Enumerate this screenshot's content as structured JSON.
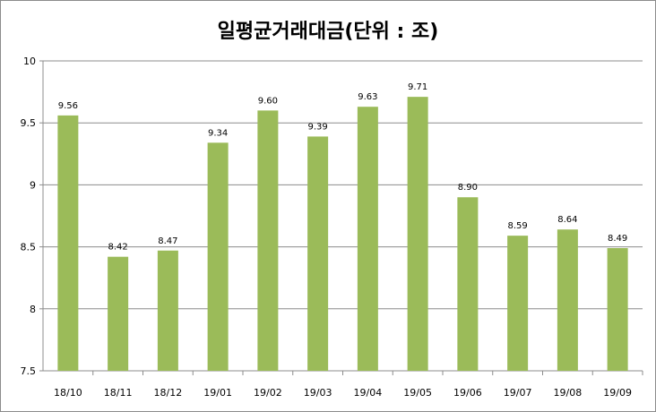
{
  "chart_data": {
    "type": "bar",
    "title": "일평균거래대금(단위 : 조)",
    "xlabel": "",
    "ylabel": "",
    "categories": [
      "18/10",
      "18/11",
      "18/12",
      "19/01",
      "19/02",
      "19/03",
      "19/04",
      "19/05",
      "19/06",
      "19/07",
      "19/08",
      "19/09"
    ],
    "values": [
      9.56,
      8.42,
      8.47,
      9.34,
      9.6,
      9.39,
      9.63,
      9.71,
      8.9,
      8.59,
      8.64,
      8.49
    ],
    "value_labels": [
      "9.56",
      "8.42",
      "8.47",
      "9.34",
      "9.60",
      "9.39",
      "9.63",
      "9.71",
      "8.90",
      "8.59",
      "8.64",
      "8.49"
    ],
    "ylim": [
      7.5,
      10
    ],
    "yticks": [
      7.5,
      8,
      8.5,
      9,
      9.5,
      10
    ],
    "ytick_labels": [
      "7.5",
      "8",
      "8.5",
      "9",
      "9.5",
      "10"
    ],
    "grid": true,
    "legend": "none",
    "bar_color": "#9bbb59",
    "grid_color": "#8c8c8c"
  }
}
